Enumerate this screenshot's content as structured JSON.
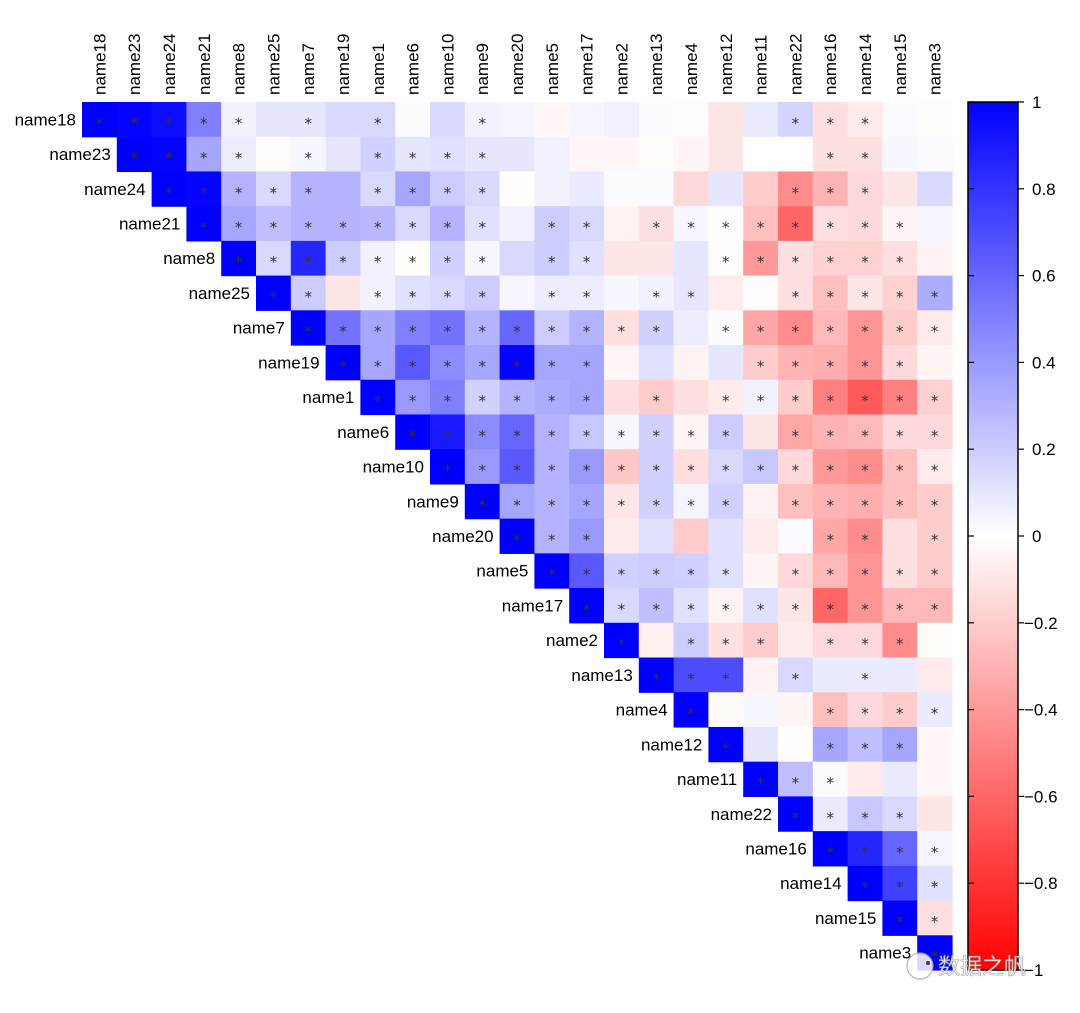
{
  "chart_data": {
    "type": "heatmap",
    "variant": "correlation-matrix-upper-triangle",
    "variables": [
      "name18",
      "name23",
      "name24",
      "name21",
      "name8",
      "name25",
      "name7",
      "name19",
      "name1",
      "name6",
      "name10",
      "name9",
      "name20",
      "name5",
      "name17",
      "name2",
      "name13",
      "name4",
      "name12",
      "name11",
      "name22",
      "name16",
      "name14",
      "name15",
      "name3"
    ],
    "upper_values_from_diagonal": [
      [
        1,
        0.98,
        0.95,
        0.5,
        0.05,
        0.1,
        0.1,
        0.15,
        0.15,
        0.02,
        0.15,
        0.05,
        0.04,
        -0.03,
        0.04,
        0.06,
        0.01,
        -0.01,
        -0.1,
        0.08,
        0.17,
        -0.12,
        -0.08,
        0.02,
        -0.01
      ],
      [
        1,
        0.98,
        0.35,
        0.07,
        -0.01,
        0.03,
        0.1,
        0.18,
        0.1,
        0.12,
        0.1,
        0.1,
        0.05,
        -0.03,
        -0.03,
        -0.01,
        -0.04,
        -0.1,
        0,
        0,
        -0.12,
        -0.12,
        0.03,
        0.02
      ],
      [
        1,
        0.98,
        0.3,
        0.15,
        0.3,
        0.3,
        0.15,
        0.35,
        0.2,
        0.15,
        -0.01,
        0.05,
        0.08,
        0.02,
        0.02,
        -0.15,
        0.1,
        -0.2,
        -0.45,
        -0.3,
        -0.15,
        -0.1,
        0.15
      ],
      [
        1,
        0.35,
        0.25,
        0.3,
        0.3,
        0.28,
        0.15,
        0.3,
        0.12,
        0.05,
        0.2,
        0.15,
        -0.05,
        -0.12,
        0.03,
        -0.01,
        -0.25,
        -0.6,
        -0.12,
        -0.15,
        -0.04,
        0.03
      ],
      [
        1,
        0.15,
        0.85,
        0.2,
        0.05,
        -0.01,
        0.18,
        0.03,
        0.15,
        0.2,
        0.12,
        -0.1,
        -0.1,
        0.1,
        -0.01,
        -0.4,
        -0.12,
        -0.18,
        -0.18,
        -0.12,
        -0.05
      ],
      [
        1,
        0.2,
        -0.1,
        0.05,
        0.12,
        0.15,
        0.2,
        0.03,
        0.07,
        0.07,
        0.03,
        0.05,
        0.1,
        -0.07,
        -0.01,
        -0.12,
        -0.25,
        -0.1,
        -0.18,
        0.32
      ],
      [
        1,
        0.55,
        0.35,
        0.5,
        0.55,
        0.3,
        0.6,
        0.2,
        0.3,
        -0.12,
        0.18,
        0.07,
        0.01,
        -0.35,
        -0.45,
        -0.28,
        -0.42,
        -0.2,
        -0.08
      ],
      [
        1,
        0.35,
        0.65,
        0.45,
        0.35,
        0.98,
        0.35,
        0.35,
        -0.03,
        0.12,
        -0.05,
        0.1,
        -0.2,
        -0.3,
        -0.32,
        -0.42,
        -0.15,
        -0.04
      ],
      [
        1,
        0.4,
        0.5,
        0.18,
        0.3,
        0.32,
        0.35,
        -0.13,
        -0.2,
        -0.12,
        -0.08,
        0.05,
        -0.2,
        -0.5,
        -0.65,
        -0.5,
        -0.18
      ],
      [
        1,
        0.9,
        0.45,
        0.6,
        0.3,
        0.22,
        0.03,
        0.18,
        -0.04,
        0.2,
        -0.1,
        -0.35,
        -0.3,
        -0.28,
        -0.15,
        -0.15
      ],
      [
        1,
        0.4,
        0.65,
        0.3,
        0.4,
        -0.22,
        0.18,
        -0.13,
        0.15,
        0.22,
        -0.15,
        -0.4,
        -0.45,
        -0.25,
        -0.08
      ],
      [
        1,
        0.35,
        0.3,
        0.35,
        -0.1,
        0.18,
        0.04,
        0.18,
        -0.05,
        -0.25,
        -0.3,
        -0.32,
        -0.25,
        -0.2
      ],
      [
        1,
        0.3,
        0.4,
        -0.08,
        0.12,
        -0.2,
        0.12,
        -0.08,
        0.02,
        -0.35,
        -0.45,
        -0.12,
        -0.2
      ],
      [
        1,
        0.65,
        0.18,
        0.2,
        0.18,
        0.12,
        -0.04,
        -0.15,
        -0.28,
        -0.42,
        -0.12,
        -0.2
      ],
      [
        1,
        0.15,
        0.25,
        0.12,
        -0.05,
        0.12,
        -0.1,
        -0.6,
        -0.42,
        -0.28,
        -0.28
      ],
      [
        1,
        -0.06,
        0.2,
        -0.12,
        -0.2,
        -0.08,
        -0.15,
        -0.15,
        -0.45,
        -0.01
      ],
      [
        1,
        0.7,
        0.7,
        -0.05,
        0.15,
        0.08,
        0.08,
        0.08,
        -0.08
      ],
      [
        1,
        -0.02,
        0.03,
        -0.04,
        -0.25,
        -0.15,
        -0.2,
        0.08
      ],
      [
        1,
        0.1,
        -0.01,
        0.35,
        0.25,
        0.35,
        -0.03
      ],
      [
        1,
        0.25,
        0.02,
        -0.08,
        0.08,
        -0.03
      ],
      [
        1,
        0.08,
        0.22,
        0.15,
        -0.1
      ],
      [
        1,
        0.85,
        0.6,
        0.04
      ],
      [
        1,
        0.75,
        0.12
      ],
      [
        1,
        -0.12
      ],
      [
        1
      ]
    ],
    "significant_columns_by_row": [
      [
        0,
        1,
        2,
        3,
        4,
        6,
        8,
        11,
        20,
        21,
        22
      ],
      [
        1,
        2,
        3,
        4,
        6,
        8,
        9,
        10,
        11,
        21,
        22
      ],
      [
        2,
        3,
        4,
        5,
        6,
        8,
        9,
        10,
        11,
        20,
        21,
        22
      ],
      [
        3,
        4,
        5,
        6,
        7,
        8,
        9,
        10,
        11,
        13,
        14,
        16,
        17,
        18,
        19,
        20,
        21,
        22,
        23
      ],
      [
        4,
        5,
        6,
        7,
        8,
        9,
        10,
        11,
        13,
        14,
        18,
        19,
        20,
        21,
        22,
        23
      ],
      [
        5,
        6,
        8,
        9,
        10,
        11,
        13,
        14,
        16,
        17,
        20,
        21,
        22,
        23,
        24
      ],
      [
        6,
        7,
        8,
        9,
        10,
        11,
        12,
        13,
        14,
        15,
        16,
        18,
        19,
        20,
        21,
        22,
        23,
        24
      ],
      [
        7,
        8,
        9,
        10,
        11,
        12,
        13,
        14,
        19,
        20,
        21,
        22,
        23
      ],
      [
        8,
        9,
        10,
        11,
        12,
        13,
        14,
        16,
        18,
        19,
        20,
        21,
        22,
        23,
        24
      ],
      [
        9,
        10,
        11,
        12,
        13,
        14,
        15,
        16,
        17,
        18,
        20,
        21,
        22,
        23,
        24
      ],
      [
        10,
        11,
        12,
        13,
        14,
        15,
        16,
        17,
        18,
        19,
        20,
        21,
        22,
        23,
        24
      ],
      [
        11,
        12,
        13,
        14,
        15,
        16,
        17,
        18,
        20,
        21,
        22,
        23,
        24
      ],
      [
        12,
        13,
        14,
        21,
        22,
        24
      ],
      [
        13,
        14,
        15,
        16,
        17,
        18,
        20,
        21,
        22,
        23,
        24
      ],
      [
        14,
        15,
        16,
        17,
        18,
        19,
        20,
        21,
        22,
        23,
        24
      ],
      [
        15,
        17,
        18,
        19,
        21,
        22,
        23
      ],
      [
        16,
        17,
        18,
        20,
        22
      ],
      [
        17,
        21,
        22,
        23,
        24
      ],
      [
        18,
        21,
        22,
        23
      ],
      [
        19,
        20,
        21
      ],
      [
        20,
        21,
        22,
        23
      ],
      [
        21,
        22,
        23,
        24
      ],
      [
        22,
        23,
        24
      ],
      [
        23,
        24
      ],
      [
        24
      ]
    ],
    "significance_marker": "*",
    "color_scale": {
      "min": -1,
      "max": 1,
      "low_color": "#FF0000",
      "mid_color": "#FFFFFF",
      "high_color": "#0000FF"
    },
    "colorbar_ticks": [
      "1",
      "0.8",
      "0.6",
      "0.4",
      "0.2",
      "0",
      "−0.2",
      "−0.4",
      "−0.6",
      "−0.8",
      "−1"
    ],
    "colorbar_tick_values": [
      1,
      0.8,
      0.6,
      0.4,
      0.2,
      0,
      -0.2,
      -0.4,
      -0.6,
      -0.8,
      -1
    ],
    "legend_placement": "right",
    "grid": false
  },
  "watermark": "数据之帆"
}
